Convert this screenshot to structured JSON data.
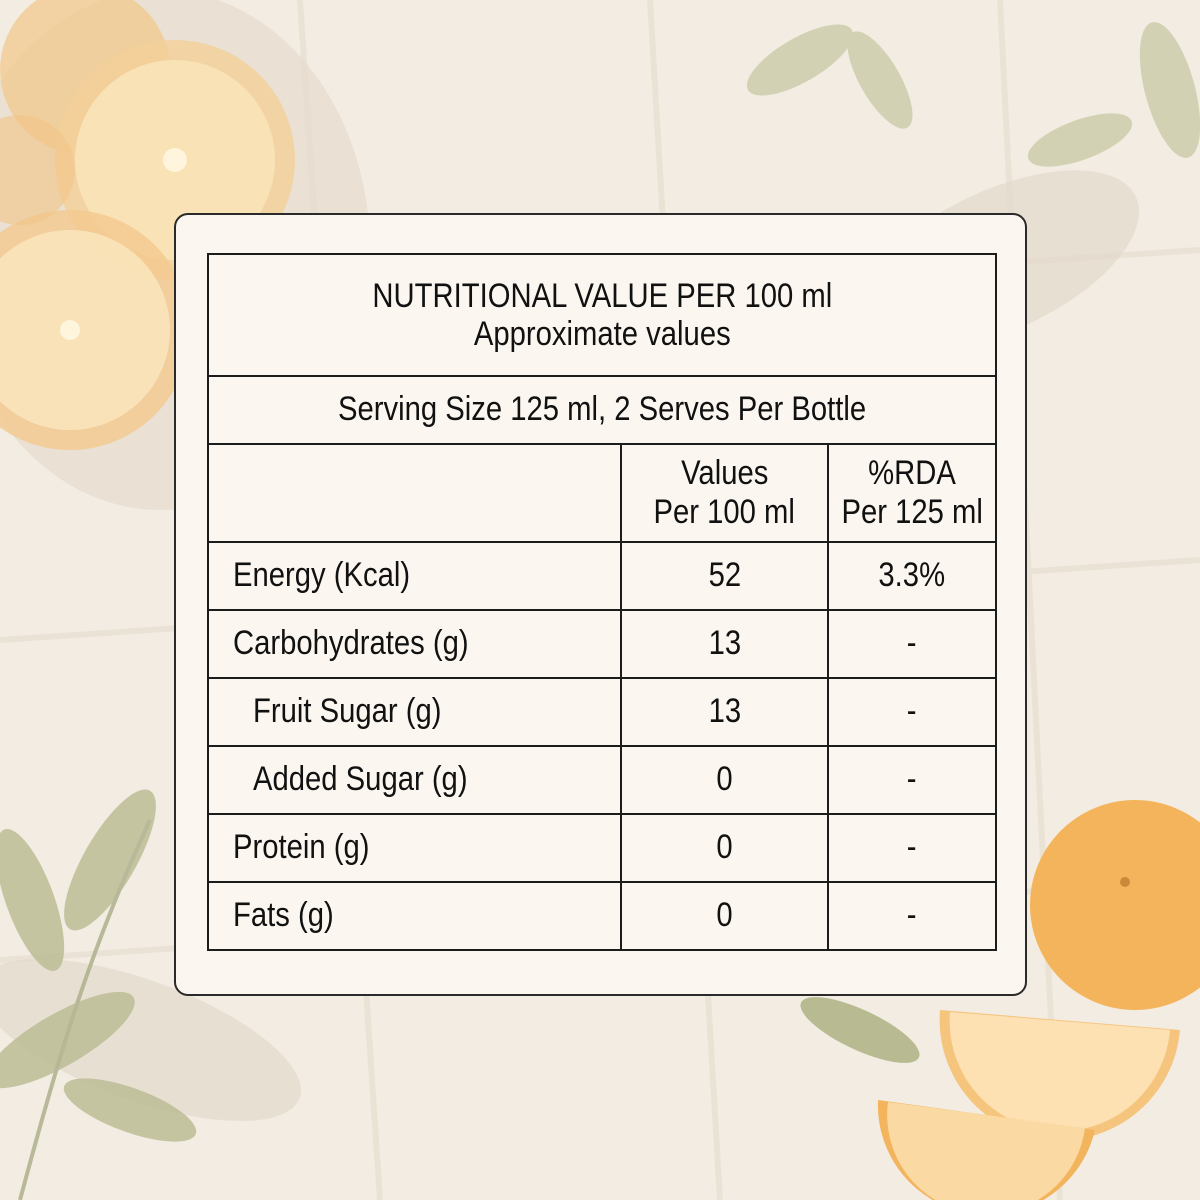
{
  "label": {
    "title": "NUTRITIONAL VALUE PER 100 ml",
    "subtitle": "Approximate values",
    "serving": "Serving Size 125 ml, 2 Serves Per Bottle",
    "columns": {
      "values_line1": "Values",
      "values_line2": "Per 100 ml",
      "rda_line1": "%RDA",
      "rda_line2": "Per 125 ml"
    },
    "rows": [
      {
        "name": "Energy (Kcal)",
        "value": "52",
        "rda": "3.3%"
      },
      {
        "name": "Carbohydrates (g)",
        "value": "13",
        "rda": "-"
      },
      {
        "name": "Fruit Sugar (g)",
        "value": "13",
        "rda": "-"
      },
      {
        "name": "Added Sugar (g)",
        "value": "0",
        "rda": "-"
      },
      {
        "name": "Protein (g)",
        "value": "0",
        "rda": "-"
      },
      {
        "name": "Fats (g)",
        "value": "0",
        "rda": "-"
      }
    ]
  },
  "colors": {
    "background": "#f3ece2",
    "card": "#fbf7f0",
    "orange": "#f2a94b",
    "leaf": "#aeb48e"
  }
}
